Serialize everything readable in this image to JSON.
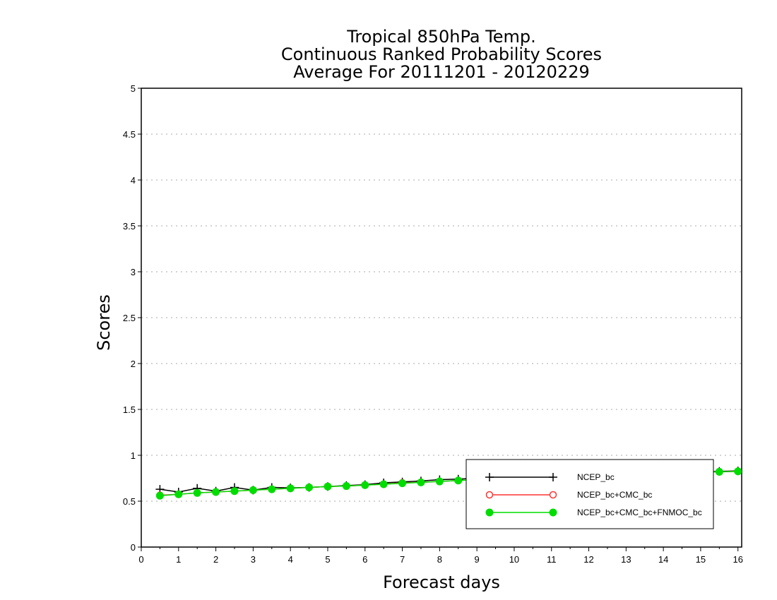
{
  "chart_data": {
    "type": "line",
    "title_lines": [
      "Tropical 850hPa Temp.",
      "Continuous Ranked Probability Scores",
      "Average For 20111201 - 20120229"
    ],
    "xlabel": "Forecast days",
    "ylabel": "Scores",
    "xlim": [
      0,
      16.1
    ],
    "ylim": [
      0,
      5
    ],
    "x_ticks": [
      "0",
      "1",
      "2",
      "3",
      "4",
      "5",
      "6",
      "7",
      "8",
      "9",
      "10",
      "11",
      "12",
      "13",
      "14",
      "15",
      "16"
    ],
    "y_ticks": [
      "0",
      "0.5",
      "1",
      "1.5",
      "2",
      "2.5",
      "3",
      "3.5",
      "4",
      "4.5",
      "5"
    ],
    "grid": "horizontal-dotted",
    "legend_position": "bottom-right",
    "x": [
      0.5,
      1,
      1.5,
      2,
      2.5,
      3,
      3.5,
      4,
      4.5,
      5,
      5.5,
      6,
      6.5,
      7,
      7.5,
      8,
      8.5,
      9,
      9.5,
      10,
      10.5,
      11,
      11.5,
      12,
      12.5,
      13,
      13.5,
      14,
      14.5,
      15,
      15.5,
      16
    ],
    "series": [
      {
        "name": "NCEP_bc",
        "color": "#000000",
        "marker": "plus",
        "values": [
          0.63,
          0.6,
          0.64,
          0.61,
          0.65,
          0.62,
          0.65,
          0.645,
          0.65,
          0.66,
          0.67,
          0.68,
          0.7,
          0.71,
          0.72,
          0.735,
          0.74,
          0.75,
          0.76,
          0.77,
          0.775,
          0.78,
          0.785,
          0.79,
          0.795,
          0.8,
          0.805,
          0.81,
          0.815,
          0.82,
          0.825,
          0.83
        ]
      },
      {
        "name": "NCEP_bc+CMC_bc",
        "color": "#ff3333",
        "marker": "open-circle",
        "values": [
          0.565,
          0.575,
          0.59,
          0.6,
          0.61,
          0.62,
          0.63,
          0.64,
          0.65,
          0.66,
          0.665,
          0.675,
          0.685,
          0.7,
          0.705,
          0.715,
          0.725,
          0.735,
          0.745,
          0.755,
          0.76,
          0.77,
          0.775,
          0.78,
          0.785,
          0.79,
          0.8,
          0.805,
          0.81,
          0.815,
          0.82,
          0.825
        ]
      },
      {
        "name": "NCEP_bc+CMC_bc+FNMOC_bc",
        "color": "#00dd00",
        "marker": "filled-circle",
        "values": [
          0.56,
          0.575,
          0.59,
          0.6,
          0.61,
          0.62,
          0.63,
          0.64,
          0.65,
          0.66,
          0.665,
          0.675,
          0.685,
          0.695,
          0.705,
          0.715,
          0.725,
          0.735,
          0.745,
          0.755,
          0.76,
          0.77,
          0.775,
          0.78,
          0.785,
          0.79,
          0.8,
          0.805,
          0.81,
          0.815,
          0.82,
          0.825
        ]
      }
    ]
  }
}
